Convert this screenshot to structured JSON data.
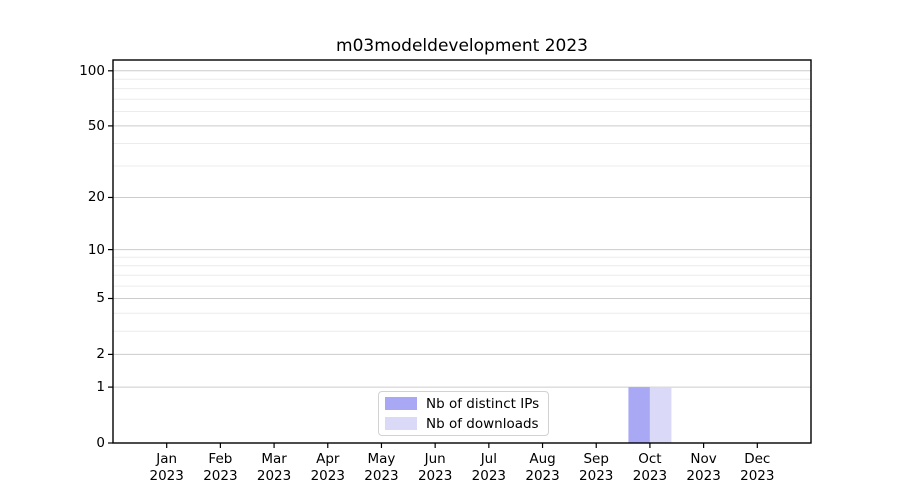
{
  "chart_data": {
    "type": "bar",
    "title": "m03modeldevelopment 2023",
    "categories": [
      "Jan 2023",
      "Feb 2023",
      "Mar 2023",
      "Apr 2023",
      "May 2023",
      "Jun 2023",
      "Jul 2023",
      "Aug 2023",
      "Sep 2023",
      "Oct 2023",
      "Nov 2023",
      "Dec 2023"
    ],
    "series": [
      {
        "name": "Nb of distinct IPs",
        "color": "#a8a8f5",
        "values": [
          0,
          0,
          0,
          0,
          0,
          0,
          0,
          0,
          0,
          1,
          0,
          0
        ]
      },
      {
        "name": "Nb of downloads",
        "color": "#dadaf8",
        "values": [
          0,
          0,
          0,
          0,
          0,
          0,
          0,
          0,
          0,
          1,
          0,
          0
        ]
      }
    ],
    "xlabel": "",
    "ylabel": "",
    "yscale": "log10(value+1)",
    "ylim": [
      0,
      115
    ],
    "yticks": [
      0,
      1,
      2,
      5,
      10,
      20,
      50,
      100
    ],
    "minor_gridlines": [
      3,
      4,
      6,
      7,
      8,
      9,
      30,
      40,
      60,
      70,
      80,
      90
    ],
    "grid": true,
    "legend_position": "lower center inside plot"
  },
  "colors": {
    "axis": "#000000",
    "grid_major": "#cccccc",
    "grid_minor": "#ececec",
    "background": "#ffffff",
    "legend_border": "#d2d2d2"
  }
}
